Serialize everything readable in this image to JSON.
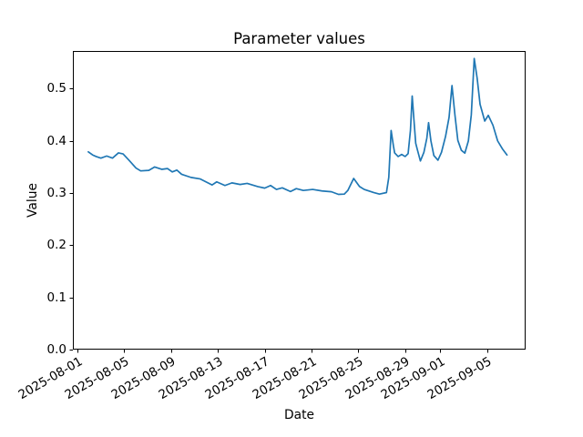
{
  "figure": {
    "background": "#ffffff"
  },
  "chart_data": {
    "type": "line",
    "title": "Parameter values",
    "xlabel": "Date",
    "ylabel": "Value",
    "line_color": "#1f77b4",
    "axis_color": "#000000",
    "grid": false,
    "legend": "none",
    "x_unit": "days since 2025-08-01",
    "xlim_days": [
      -0.39,
      38.29
    ],
    "ylim": [
      0,
      0.5723
    ],
    "x_ticks": [
      {
        "day": 0,
        "label": "2025-08-01"
      },
      {
        "day": 4,
        "label": "2025-08-05"
      },
      {
        "day": 8,
        "label": "2025-08-09"
      },
      {
        "day": 12,
        "label": "2025-08-13"
      },
      {
        "day": 16,
        "label": "2025-08-17"
      },
      {
        "day": 20,
        "label": "2025-08-21"
      },
      {
        "day": 24,
        "label": "2025-08-25"
      },
      {
        "day": 28,
        "label": "2025-08-29"
      },
      {
        "day": 31,
        "label": "2025-09-01"
      },
      {
        "day": 35,
        "label": "2025-09-05"
      }
    ],
    "y_ticks": [
      {
        "value": 0.0,
        "label": "0.0"
      },
      {
        "value": 0.1,
        "label": "0.1"
      },
      {
        "value": 0.2,
        "label": "0.2"
      },
      {
        "value": 0.3,
        "label": "0.3"
      },
      {
        "value": 0.4,
        "label": "0.4"
      },
      {
        "value": 0.5,
        "label": "0.5"
      }
    ],
    "x_days": [
      0.93,
      1.3,
      1.6,
      2.0,
      2.5,
      3.0,
      3.5,
      3.9,
      4.4,
      5.0,
      5.4,
      6.1,
      6.6,
      7.2,
      7.7,
      8.1,
      8.5,
      8.9,
      9.7,
      10.5,
      11.5,
      11.9,
      12.6,
      13.2,
      13.9,
      14.5,
      15.4,
      16.0,
      16.5,
      17.0,
      17.5,
      18.2,
      18.7,
      19.3,
      20.1,
      20.9,
      21.7,
      22.3,
      22.8,
      23.1,
      23.6,
      24.1,
      24.5,
      25.3,
      25.8,
      26.4,
      26.6,
      26.8,
      27.0,
      27.1,
      27.4,
      27.7,
      28.0,
      28.25,
      28.45,
      28.6,
      28.75,
      28.9,
      29.05,
      29.3,
      29.6,
      29.85,
      30.0,
      30.2,
      30.45,
      30.8,
      31.1,
      31.45,
      31.75,
      32.0,
      32.25,
      32.5,
      32.8,
      33.1,
      33.4,
      33.65,
      33.9,
      34.15,
      34.4,
      34.8,
      35.1,
      35.5,
      35.9,
      36.3,
      36.7
    ],
    "values": [
      0.379,
      0.373,
      0.37,
      0.367,
      0.371,
      0.367,
      0.377,
      0.375,
      0.363,
      0.348,
      0.3425,
      0.3435,
      0.35,
      0.3455,
      0.347,
      0.3405,
      0.344,
      0.336,
      0.33,
      0.327,
      0.3155,
      0.3215,
      0.3145,
      0.3195,
      0.3165,
      0.3185,
      0.3125,
      0.3095,
      0.3145,
      0.307,
      0.31,
      0.303,
      0.3085,
      0.305,
      0.307,
      0.304,
      0.3025,
      0.2975,
      0.298,
      0.305,
      0.328,
      0.3125,
      0.307,
      0.301,
      0.298,
      0.301,
      0.33,
      0.42,
      0.39,
      0.377,
      0.37,
      0.374,
      0.37,
      0.3755,
      0.42,
      0.486,
      0.44,
      0.3955,
      0.3825,
      0.3615,
      0.378,
      0.405,
      0.435,
      0.4,
      0.372,
      0.363,
      0.378,
      0.4086,
      0.445,
      0.506,
      0.45,
      0.401,
      0.382,
      0.3766,
      0.4,
      0.45,
      0.558,
      0.52,
      0.47,
      0.438,
      0.449,
      0.43,
      0.4,
      0.385,
      0.373
    ]
  }
}
